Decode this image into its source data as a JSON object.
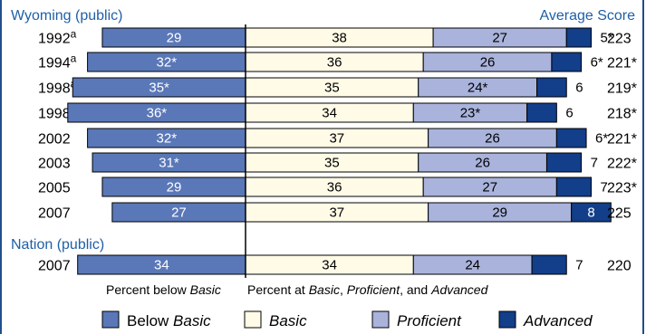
{
  "chart_data": {
    "type": "bar",
    "orientation": "horizontal-stacked-diverging",
    "groups": [
      {
        "title": "Wyoming (public)",
        "rows": [
          {
            "year": "1992",
            "sup": "a",
            "below_basic": "29",
            "basic": "38",
            "proficient": "27",
            "advanced": "5*",
            "avg_score": "223",
            "bb": 29,
            "ba": 38,
            "pr": 27,
            "ad": 5
          },
          {
            "year": "1994",
            "sup": "a",
            "below_basic": "32*",
            "basic": "36",
            "proficient": "26",
            "advanced": "6*",
            "avg_score": "221*",
            "bb": 32,
            "ba": 36,
            "pr": 26,
            "ad": 6
          },
          {
            "year": "1998",
            "sup": "a",
            "below_basic": "35*",
            "basic": "35",
            "proficient": "24*",
            "advanced": "6",
            "avg_score": "219*",
            "bb": 35,
            "ba": 35,
            "pr": 24,
            "ad": 6
          },
          {
            "year": "1998",
            "sup": "",
            "below_basic": "36*",
            "basic": "34",
            "proficient": "23*",
            "advanced": "6",
            "avg_score": "218*",
            "bb": 36,
            "ba": 34,
            "pr": 23,
            "ad": 6
          },
          {
            "year": "2002",
            "sup": "",
            "below_basic": "32*",
            "basic": "37",
            "proficient": "26",
            "advanced": "6*",
            "avg_score": "221*",
            "bb": 32,
            "ba": 37,
            "pr": 26,
            "ad": 6
          },
          {
            "year": "2003",
            "sup": "",
            "below_basic": "31*",
            "basic": "35",
            "proficient": "26",
            "advanced": "7",
            "avg_score": "222*",
            "bb": 31,
            "ba": 35,
            "pr": 26,
            "ad": 7
          },
          {
            "year": "2005",
            "sup": "",
            "below_basic": "29",
            "basic": "36",
            "proficient": "27",
            "advanced": "7",
            "avg_score": "223*",
            "bb": 29,
            "ba": 36,
            "pr": 27,
            "ad": 7
          },
          {
            "year": "2007",
            "sup": "",
            "below_basic": "27",
            "basic": "37",
            "proficient": "29",
            "advanced": "8",
            "avg_score": "225",
            "bb": 27,
            "ba": 37,
            "pr": 29,
            "ad": 8,
            "advanced_inside": true
          }
        ]
      },
      {
        "title": "Nation (public)",
        "rows": [
          {
            "year": "2007",
            "sup": "",
            "below_basic": "34",
            "basic": "34",
            "proficient": "24",
            "advanced": "7",
            "avg_score": "220",
            "bb": 34,
            "ba": 34,
            "pr": 24,
            "ad": 7
          }
        ]
      }
    ],
    "avg_score_header": "Average Score",
    "axis_label_left": "Percent below",
    "axis_label_left_italic": "Basic",
    "axis_label_right_parts": [
      {
        "t": "Percent at ",
        "i": false
      },
      {
        "t": "Basic",
        "i": true
      },
      {
        "t": ", ",
        "i": false
      },
      {
        "t": "Proficient",
        "i": true
      },
      {
        "t": ", and ",
        "i": false
      },
      {
        "t": "Advanced",
        "i": true
      }
    ],
    "legend": [
      {
        "key": "below_basic",
        "pre": "Below ",
        "it": "Basic"
      },
      {
        "key": "basic",
        "pre": "",
        "it": "Basic"
      },
      {
        "key": "proficient",
        "pre": "",
        "it": "Proficient"
      },
      {
        "key": "advanced",
        "pre": "",
        "it": "Advanced"
      }
    ],
    "colors": {
      "below_basic": "#5a78b8",
      "basic": "#fffbe6",
      "proficient": "#a9b3dc",
      "advanced": "#123e8a",
      "title": "#1f5fa6",
      "outline": "#000000"
    }
  }
}
